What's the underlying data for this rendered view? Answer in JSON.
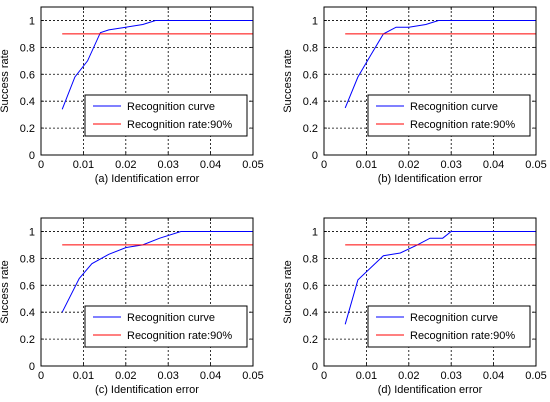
{
  "chart_data": [
    {
      "type": "line",
      "xlabel": "(a) Identification error",
      "ylabel": "Success rate",
      "xlim": [
        0,
        0.05
      ],
      "ylim": [
        0,
        1.1
      ],
      "xticks": [
        0,
        0.01,
        0.02,
        0.03,
        0.04,
        0.05
      ],
      "xtick_labels": [
        "0",
        "0.01",
        "0.02",
        "0.03",
        "0.04",
        "0.05"
      ],
      "yticks": [
        0,
        0.2,
        0.4,
        0.6,
        0.8,
        1
      ],
      "ytick_labels": [
        "0",
        "0.2",
        "0.4",
        "0.6",
        "0.8",
        "1"
      ],
      "grid": true,
      "legend_position": "lower-right",
      "series": [
        {
          "name": "Recognition curve",
          "color": "#0000ff",
          "x": [
            0.005,
            0.008,
            0.011,
            0.014,
            0.016,
            0.02,
            0.024,
            0.027,
            0.05
          ],
          "y": [
            0.34,
            0.58,
            0.7,
            0.91,
            0.93,
            0.95,
            0.97,
            1.0,
            1.0
          ]
        },
        {
          "name": "Recognition rate:90%",
          "color": "#ff0000",
          "x": [
            0.005,
            0.05
          ],
          "y": [
            0.9,
            0.9
          ]
        }
      ]
    },
    {
      "type": "line",
      "xlabel": "(b) Identification error",
      "ylabel": "Success rate",
      "xlim": [
        0,
        0.05
      ],
      "ylim": [
        0,
        1.1
      ],
      "xticks": [
        0,
        0.01,
        0.02,
        0.03,
        0.04,
        0.05
      ],
      "xtick_labels": [
        "0",
        "0.01",
        "0.02",
        "0.03",
        "0.04",
        "0.05"
      ],
      "yticks": [
        0,
        0.2,
        0.4,
        0.6,
        0.8,
        1
      ],
      "ytick_labels": [
        "0",
        "0.2",
        "0.4",
        "0.6",
        "0.8",
        "1"
      ],
      "grid": true,
      "legend_position": "lower-right",
      "series": [
        {
          "name": "Recognition curve",
          "color": "#0000ff",
          "x": [
            0.005,
            0.008,
            0.011,
            0.014,
            0.017,
            0.02,
            0.024,
            0.027,
            0.05
          ],
          "y": [
            0.35,
            0.58,
            0.74,
            0.9,
            0.95,
            0.95,
            0.97,
            1.0,
            1.0
          ]
        },
        {
          "name": "Recognition rate:90%",
          "color": "#ff0000",
          "x": [
            0.005,
            0.05
          ],
          "y": [
            0.9,
            0.9
          ]
        }
      ]
    },
    {
      "type": "line",
      "xlabel": "(c) Identification error",
      "ylabel": "Success rate",
      "xlim": [
        0,
        0.05
      ],
      "ylim": [
        0,
        1.1
      ],
      "xticks": [
        0,
        0.01,
        0.02,
        0.03,
        0.04,
        0.05
      ],
      "xtick_labels": [
        "0",
        "0.01",
        "0.02",
        "0.03",
        "0.04",
        "0.05"
      ],
      "yticks": [
        0,
        0.2,
        0.4,
        0.6,
        0.8,
        1
      ],
      "ytick_labels": [
        "0",
        "0.2",
        "0.4",
        "0.6",
        "0.8",
        "1"
      ],
      "grid": true,
      "legend_position": "lower-right",
      "series": [
        {
          "name": "Recognition curve",
          "color": "#0000ff",
          "x": [
            0.005,
            0.009,
            0.012,
            0.016,
            0.02,
            0.024,
            0.028,
            0.033,
            0.05
          ],
          "y": [
            0.4,
            0.65,
            0.76,
            0.83,
            0.88,
            0.9,
            0.95,
            1.0,
            1.0
          ]
        },
        {
          "name": "Recognition rate:90%",
          "color": "#ff0000",
          "x": [
            0.005,
            0.05
          ],
          "y": [
            0.9,
            0.9
          ]
        }
      ]
    },
    {
      "type": "line",
      "xlabel": "(d) Identification error",
      "ylabel": "Success rate",
      "xlim": [
        0,
        0.05
      ],
      "ylim": [
        0,
        1.1
      ],
      "xticks": [
        0,
        0.01,
        0.02,
        0.03,
        0.04,
        0.05
      ],
      "xtick_labels": [
        "0",
        "0.01",
        "0.02",
        "0.03",
        "0.04",
        "0.05"
      ],
      "yticks": [
        0,
        0.2,
        0.4,
        0.6,
        0.8,
        1
      ],
      "ytick_labels": [
        "0",
        "0.2",
        "0.4",
        "0.6",
        "0.8",
        "1"
      ],
      "grid": true,
      "legend_position": "lower-right",
      "series": [
        {
          "name": "Recognition curve",
          "color": "#0000ff",
          "x": [
            0.005,
            0.008,
            0.014,
            0.018,
            0.022,
            0.025,
            0.028,
            0.03,
            0.05
          ],
          "y": [
            0.31,
            0.64,
            0.82,
            0.84,
            0.9,
            0.95,
            0.95,
            1.0,
            1.0
          ]
        },
        {
          "name": "Recognition rate:90%",
          "color": "#ff0000",
          "x": [
            0.005,
            0.05
          ],
          "y": [
            0.9,
            0.9
          ]
        }
      ]
    }
  ]
}
